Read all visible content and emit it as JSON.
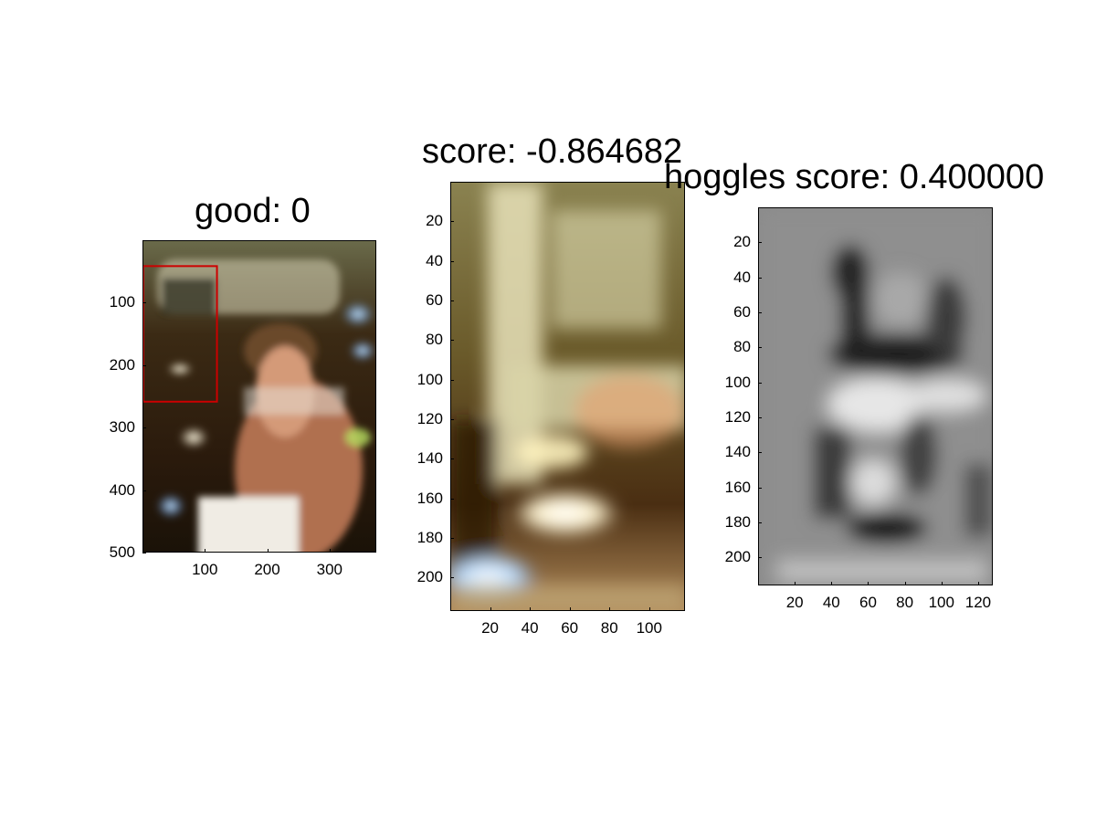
{
  "chart_data": [
    {
      "type": "image",
      "title": "good: 0",
      "xlim": [
        0,
        375
      ],
      "ylim": [
        0,
        500
      ],
      "x_ticks": [
        100,
        200,
        300
      ],
      "y_ticks": [
        100,
        200,
        300,
        400,
        500
      ],
      "bounding_box": {
        "x": [
          0,
          118
        ],
        "y": [
          40,
          257
        ],
        "color": "#cc0000"
      },
      "colors": {
        "bbox": "#cc0000"
      }
    },
    {
      "type": "image",
      "title": "score: -0.864682",
      "xlim": [
        0,
        118
      ],
      "ylim": [
        0,
        217
      ],
      "x_ticks": [
        20,
        40,
        60,
        80,
        100
      ],
      "y_ticks": [
        20,
        40,
        60,
        80,
        100,
        120,
        140,
        160,
        180,
        200
      ]
    },
    {
      "type": "heatmap",
      "title": "hoggles score: 0.400000",
      "colormap": "gray",
      "xlim": [
        0,
        128
      ],
      "ylim": [
        0,
        216
      ],
      "x_ticks": [
        20,
        40,
        60,
        80,
        100,
        120
      ],
      "y_ticks": [
        20,
        40,
        60,
        80,
        100,
        120,
        140,
        160,
        180,
        200
      ]
    }
  ]
}
